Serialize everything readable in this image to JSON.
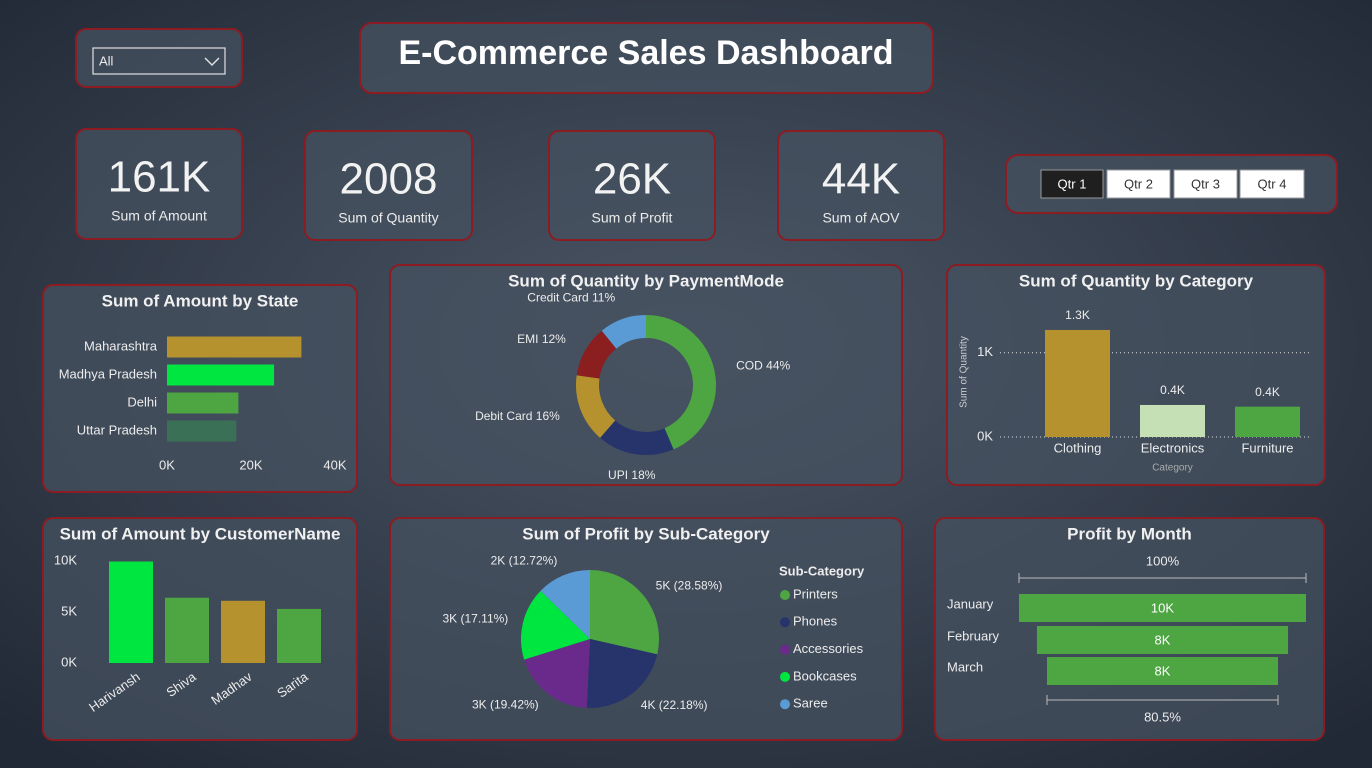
{
  "title": "E-Commerce Sales Dashboard",
  "dropdown": "All",
  "quarters": [
    "Qtr 1",
    "Qtr 2",
    "Qtr 3",
    "Qtr 4"
  ],
  "kpis": [
    {
      "value": "161K",
      "label": "Sum of Amount"
    },
    {
      "value": "2008",
      "label": "Sum of Quantity"
    },
    {
      "value": "26K",
      "label": "Sum of Profit"
    },
    {
      "value": "44K",
      "label": "Sum of AOV"
    }
  ],
  "chart_data": [
    {
      "type": "bar",
      "orientation": "horizontal",
      "title": "Sum of Amount by State",
      "categories": [
        "Maharashtra",
        "Madhya Pradesh",
        "Delhi",
        "Uttar Pradesh"
      ],
      "values": [
        32000,
        25500,
        17000,
        16500
      ],
      "colors": [
        "#b5922e",
        "#00e640",
        "#4da642",
        "#3a7055"
      ],
      "xlim": [
        0,
        40000
      ],
      "xticks": [
        {
          "value": 0,
          "label": "0K"
        },
        {
          "value": 20000,
          "label": "20K"
        },
        {
          "value": 40000,
          "label": "40K"
        }
      ]
    },
    {
      "type": "donut",
      "title": "Sum of Quantity by PaymentMode",
      "categories": [
        "COD",
        "UPI",
        "Debit Card",
        "EMI",
        "Credit Card"
      ],
      "values": [
        44,
        18,
        16,
        12,
        11
      ],
      "value_labels": [
        "44%",
        "18%",
        "16%",
        "12%",
        "11%"
      ],
      "colors": [
        "#4da642",
        "#26346b",
        "#b5922e",
        "#8b1f1f",
        "#5b9bd5"
      ]
    },
    {
      "type": "bar",
      "orientation": "vertical",
      "title": "Sum of Quantity by Category",
      "categories": [
        "Clothing",
        "Electronics",
        "Furniture"
      ],
      "values": [
        1270,
        380,
        360
      ],
      "value_labels": [
        "1.3K",
        "0.4K",
        "0.4K"
      ],
      "colors": [
        "#b5922e",
        "#c5e0b4",
        "#4da642"
      ],
      "x_label": "Category",
      "y_label": "Sum of Quantity",
      "ylim": [
        0,
        1400
      ],
      "yticks": [
        {
          "value": 0,
          "label": "0K"
        },
        {
          "value": 1000,
          "label": "1K"
        }
      ],
      "grid": true
    },
    {
      "type": "bar",
      "orientation": "vertical",
      "title": "Sum of Amount by CustomerName",
      "categories": [
        "Harivansh",
        "Shiva",
        "Madhav",
        "Sarita"
      ],
      "values": [
        9950,
        6400,
        6100,
        5300
      ],
      "colors": [
        "#00e640",
        "#4da642",
        "#b5922e",
        "#4da642"
      ],
      "ylim": [
        0,
        10000
      ],
      "yticks": [
        {
          "value": 0,
          "label": "0K"
        },
        {
          "value": 5000,
          "label": "5K"
        },
        {
          "value": 10000,
          "label": "10K"
        }
      ],
      "grid": false,
      "rotate_labels": true
    },
    {
      "type": "pie",
      "title": "Sum of Profit by Sub-Category",
      "legend_title": "Sub-Category",
      "categories": [
        "Printers",
        "Phones",
        "Accessories",
        "Bookcases",
        "Saree"
      ],
      "values": [
        28.58,
        22.18,
        19.42,
        17.11,
        12.72
      ],
      "value_labels": [
        "5K (28.58%)",
        "4K (22.18%)",
        "3K (19.42%)",
        "3K (17.11%)",
        "2K (12.72%)"
      ],
      "colors": [
        "#4da642",
        "#26346b",
        "#6a2a8c",
        "#00e640",
        "#5b9bd5"
      ]
    },
    {
      "type": "funnel",
      "title": "Profit by Month",
      "categories": [
        "January",
        "February",
        "March"
      ],
      "values": [
        9600,
        8400,
        7728
      ],
      "value_labels": [
        "10K",
        "8K",
        "8K"
      ],
      "color": "#4da642",
      "top_label": "100%",
      "bottom_label": "80.5%"
    }
  ]
}
